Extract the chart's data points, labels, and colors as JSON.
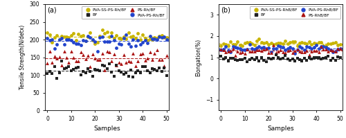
{
  "n_samples": 51,
  "panel_a": {
    "pva_ss_mean": 207,
    "pva_ss_std": 9,
    "pva_ps_mean": 196,
    "pva_ps_std": 9,
    "ps_mean": 148,
    "ps_std": 12,
    "bf_mean": 112,
    "bf_std": 12,
    "ylim": [
      0,
      300
    ],
    "yticks": [
      0,
      50,
      100,
      150,
      200,
      250,
      300
    ],
    "ylabel": "Tensile Strength(N/detx)",
    "xlabel": "Samples",
    "label": "(a)",
    "colors": {
      "pva_ss": "#c8b400",
      "pva_ps": "#2244cc",
      "ps": "#aa1111",
      "bf": "#222222"
    },
    "legend_labels": [
      "PVA-SS-PS-Rh/BF",
      "BF",
      "PS-Rh/BF",
      "PVA-PS-Rh/BF"
    ]
  },
  "panel_b": {
    "pva_ss_mean": 1.65,
    "pva_ss_std": 0.07,
    "pva_ps_mean": 1.42,
    "pva_ps_std": 0.08,
    "ps_mean": 1.32,
    "ps_std": 0.08,
    "bf_mean": 0.92,
    "bf_std": 0.07,
    "ylim": [
      -1.5,
      3.5
    ],
    "yticks": [
      -1,
      0,
      1,
      2,
      3
    ],
    "ylabel": "Elongation(%)",
    "xlabel": "Samples",
    "label": "(b)",
    "colors": {
      "pva_ss": "#c8b400",
      "pva_ps": "#2244cc",
      "ps": "#aa1111",
      "bf": "#222222"
    },
    "legend_labels": [
      "PVA-SS-PS-RhB/BF",
      "BF",
      "PVA-PS-RhB/BF",
      "PS-RhB/BF"
    ]
  }
}
